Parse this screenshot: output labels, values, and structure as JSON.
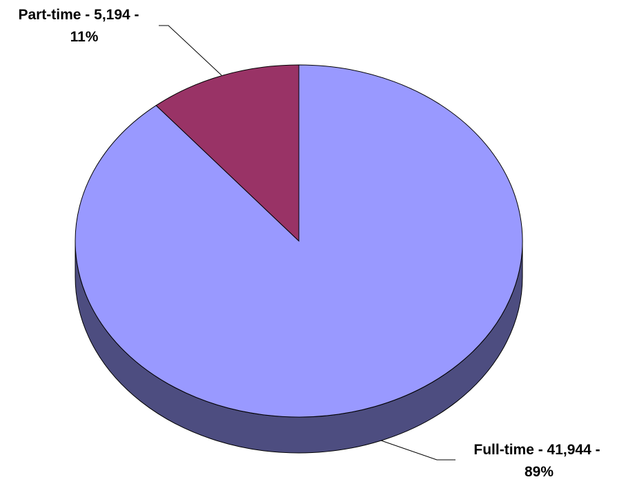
{
  "chart_data": {
    "type": "pie",
    "style": "3d",
    "title": "",
    "legend": "none",
    "slices": [
      {
        "label": "Full-time",
        "value": 41944,
        "percent": 89,
        "label_text_line1": "Full-time - 41,944 -",
        "label_text_line2": "89%",
        "color": "#9999ff",
        "side_color": "#4d4d80"
      },
      {
        "label": "Part-time",
        "value": 5194,
        "percent": 11,
        "label_text_line1": "Part-time - 5,194 -",
        "label_text_line2": "11%",
        "color": "#993366",
        "side_color": "#4d1a33"
      }
    ]
  }
}
